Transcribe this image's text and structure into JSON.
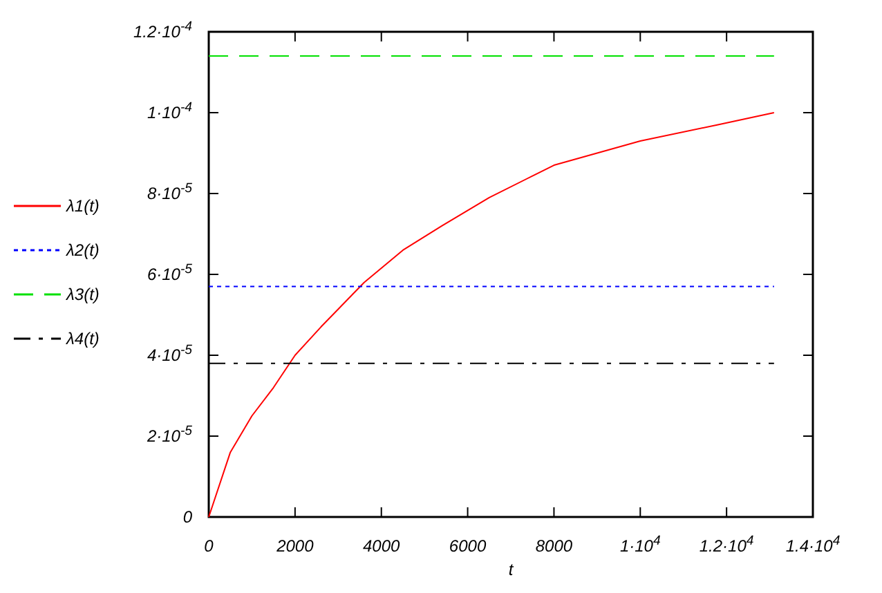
{
  "chart_data": {
    "type": "line",
    "xlabel": "t",
    "legend": "left",
    "grid": false,
    "xlim": [
      0,
      14000
    ],
    "ylim": [
      0,
      0.00012
    ],
    "xticks": [
      0,
      2000,
      4000,
      6000,
      8000,
      {
        "value": 10000,
        "label": "1·10$^{4}$"
      },
      {
        "value": 12000,
        "label": "1.2·10$^{4}$"
      },
      {
        "value": 14000,
        "label": "1.4·10$^{4}$"
      }
    ],
    "yticks": [
      0,
      {
        "value": 2e-05,
        "label": "2·10$^{-5}$"
      },
      {
        "value": 4e-05,
        "label": "4·10$^{-5}$"
      },
      {
        "value": 6e-05,
        "label": "6·10$^{-5}$"
      },
      {
        "value": 8e-05,
        "label": "8·10$^{-5}$"
      },
      {
        "value": 0.0001,
        "label": "1·10$^{-4}$"
      },
      {
        "value": 0.00012,
        "label": "1.2·10$^{-4}$"
      }
    ],
    "series": [
      {
        "name": "λ1(t)",
        "color": "#ff0000",
        "line_style": "solid",
        "x": [
          0,
          500,
          1000,
          1500,
          2000,
          2600,
          3600,
          4500,
          5400,
          6500,
          8000,
          10000,
          11800,
          13100
        ],
        "values": [
          0,
          1.6e-05,
          2.5e-05,
          3.2e-05,
          4e-05,
          4.7e-05,
          5.8e-05,
          6.6e-05,
          7.2e-05,
          7.9e-05,
          8.7e-05,
          9.3e-05,
          9.7e-05,
          0.0001
        ]
      },
      {
        "name": "λ2(t)",
        "color": "#0000ff",
        "line_style": "dotted",
        "x": [
          0,
          13100
        ],
        "values": [
          5.7e-05,
          5.7e-05
        ]
      },
      {
        "name": "λ3(t)",
        "color": "#00e000",
        "line_style": "dashed",
        "x": [
          0,
          13100
        ],
        "values": [
          0.000114,
          0.000114
        ]
      },
      {
        "name": "λ4(t)",
        "color": "#000000",
        "line_style": "dashdot",
        "x": [
          0,
          13100
        ],
        "values": [
          3.8e-05,
          3.8e-05
        ]
      }
    ]
  }
}
